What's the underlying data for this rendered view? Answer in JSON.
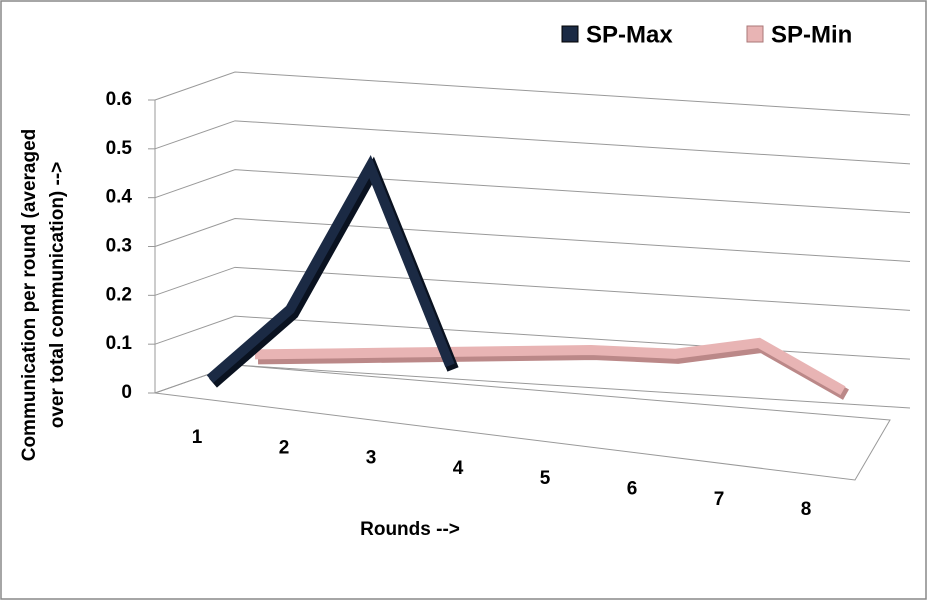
{
  "chart_data": {
    "type": "line",
    "three_d": true,
    "x_label": "Rounds -->",
    "y_label": [
      "Communication per round (averaged",
      "over total communication) -->"
    ],
    "categories": [
      "1",
      "2",
      "3",
      "4",
      "5",
      "6",
      "7",
      "8"
    ],
    "series": [
      {
        "name": "SP-Max",
        "color": "#1b2a44",
        "values": [
          0.05,
          0.2,
          0.5,
          0.1,
          null,
          null,
          null,
          null
        ]
      },
      {
        "name": "SP-Min",
        "color": "#e8b4b4",
        "values": [
          0.08,
          0.09,
          0.1,
          0.11,
          0.12,
          0.12,
          0.15,
          0.06
        ]
      }
    ],
    "ylim": [
      0,
      0.6
    ],
    "yticks": [
      0,
      0.1,
      0.2,
      0.3,
      0.4,
      0.5,
      0.6
    ],
    "grid": true,
    "legend": "top-right"
  }
}
